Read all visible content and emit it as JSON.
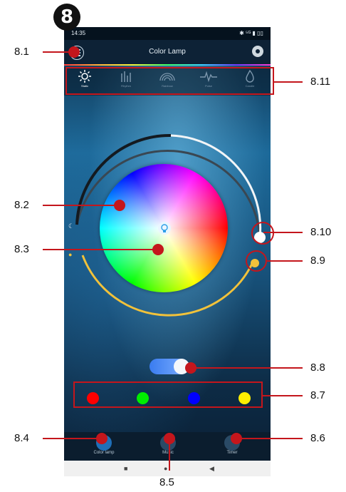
{
  "badge": "8",
  "status": {
    "time": "14:35",
    "indicators": "✱ ⁵ᴳ ▮ ▯▯"
  },
  "topbar": {
    "title": "Color Lamp"
  },
  "modes": [
    {
      "label": "Static",
      "icon": "sun-icon"
    },
    {
      "label": "Rhythm",
      "icon": "equalizer-icon"
    },
    {
      "label": "Rainbow",
      "icon": "rainbow-icon"
    },
    {
      "label": "Pulse",
      "icon": "pulse-icon"
    },
    {
      "label": "Candle",
      "icon": "flame-icon"
    }
  ],
  "swatches": [
    "#ff0000",
    "#00ee00",
    "#0000ff",
    "#ffee00"
  ],
  "bottom_nav": [
    {
      "label": "Color lamp",
      "icon": "tree-icon"
    },
    {
      "label": "Music",
      "icon": "music-icon"
    },
    {
      "label": "Timer",
      "icon": "timer-icon"
    }
  ],
  "callouts": {
    "c1": "8.1",
    "c11": "8.11",
    "c2": "8.2",
    "c10": "8.10",
    "c3": "8.3",
    "c9": "8.9",
    "c8": "8.8",
    "c7": "8.7",
    "c4": "8.4",
    "c6": "8.6",
    "c5": "8.5"
  }
}
